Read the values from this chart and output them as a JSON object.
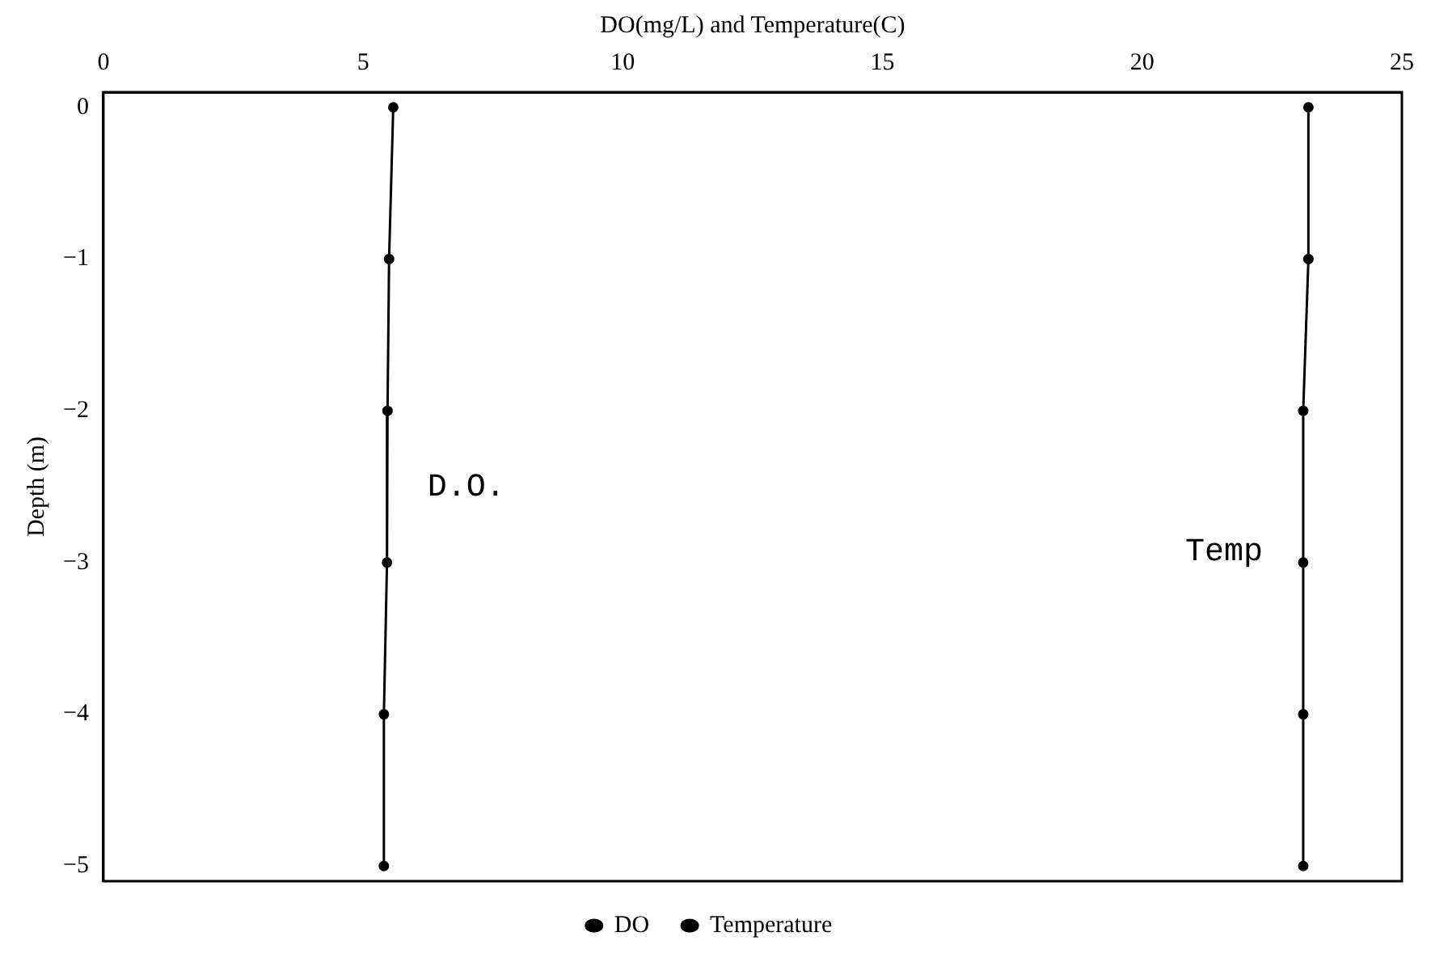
{
  "chart_data": {
    "type": "line",
    "xlabel": "DO(mg/L) and Temperature(C)",
    "ylabel": "Depth (m)",
    "xlim": [
      0,
      25
    ],
    "xticks": [
      0,
      5,
      10,
      15,
      20,
      25
    ],
    "ylim": [
      -5.1,
      0.1
    ],
    "yticks": [
      0,
      -1,
      -2,
      -3,
      -4,
      -5
    ],
    "series": [
      {
        "name": "DO",
        "color": "#000000",
        "x": [
          5.58,
          5.5,
          5.47,
          5.46,
          5.4,
          5.4
        ],
        "values": [
          0,
          -1,
          -2,
          -3,
          -4,
          -5
        ]
      },
      {
        "name": "Temperature",
        "color": "#000000",
        "x": [
          23.2,
          23.2,
          23.1,
          23.1,
          23.1,
          23.1
        ],
        "values": [
          0,
          -1,
          -2,
          -3,
          -4,
          -5
        ]
      }
    ],
    "annotations": [
      "D.O.",
      "Temp"
    ],
    "legend": "bottom",
    "marker": "circle",
    "line_style": "solid",
    "grid": false
  }
}
